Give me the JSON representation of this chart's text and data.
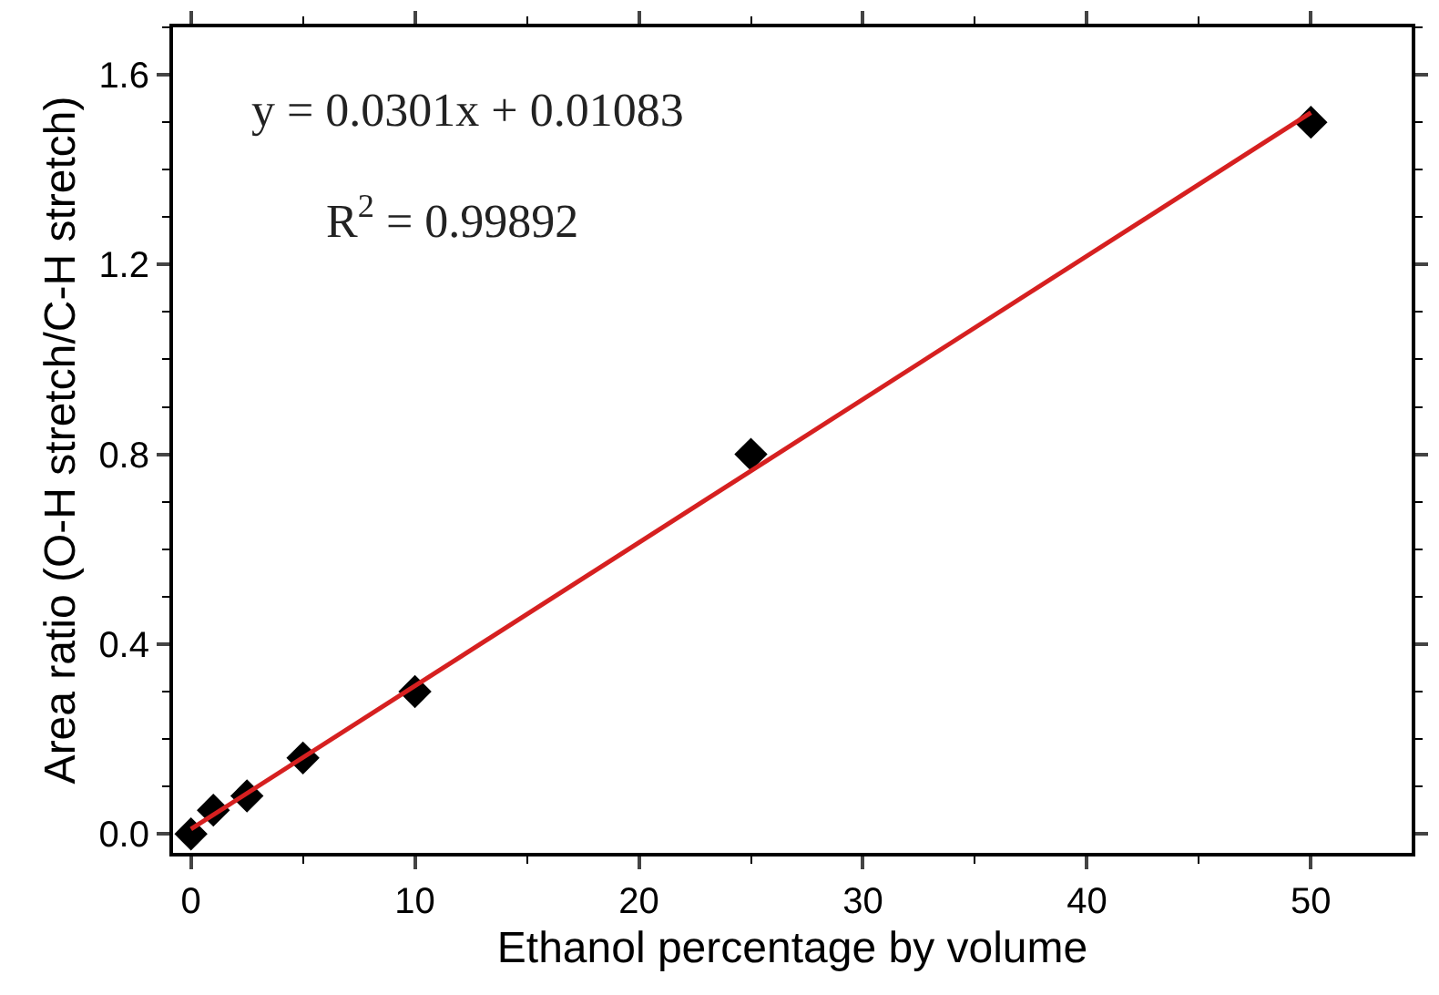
{
  "chart_data": {
    "type": "scatter",
    "xlabel": "Ethanol percentage by volume",
    "ylabel": "Area ratio (O-H stretch/C-H stretch)",
    "xlim": [
      -0.8,
      54.5
    ],
    "ylim": [
      -0.04,
      1.7
    ],
    "xticks": [
      0,
      10,
      20,
      30,
      40,
      50
    ],
    "yticks": [
      {
        "value": 0,
        "label": "0.0"
      },
      {
        "value": 0.4,
        "label": "0.4"
      },
      {
        "value": 0.8,
        "label": "0.8"
      },
      {
        "value": 1.2,
        "label": "1.2"
      },
      {
        "value": 1.6,
        "label": "1.6"
      }
    ],
    "grid": false,
    "series": [
      {
        "color": "#000000",
        "marker": "diamond",
        "x": [
          0,
          1,
          2.5,
          5,
          10,
          25,
          50
        ],
        "values": [
          0,
          0.05,
          0.08,
          0.16,
          0.3,
          0.8,
          1.5
        ]
      },
      {
        "type": "line",
        "color": "#d62020",
        "x": [
          0,
          50
        ],
        "marker": "none",
        "values": [
          0.01,
          1.52
        ]
      }
    ],
    "annotations": [
      "y = 0.0301x + 0.01083",
      "R$^{2}$ = 0.99892"
    ]
  }
}
